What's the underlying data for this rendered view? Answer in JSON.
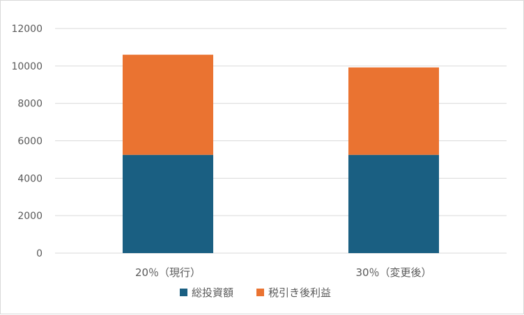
{
  "chart_data": {
    "type": "bar",
    "stacked": true,
    "categories": [
      "20％（現行）",
      "30％（変更後）"
    ],
    "series": [
      {
        "name": "総投資額",
        "values": [
          5250,
          5250
        ],
        "color": "#1a5f82"
      },
      {
        "name": "税引き後利益",
        "values": [
          5350,
          4670
        ],
        "color": "#ea7331"
      }
    ],
    "ylim": [
      0,
      12000
    ],
    "yticks": [
      0,
      2000,
      4000,
      6000,
      8000,
      10000,
      12000
    ],
    "grid": true,
    "legend": "bottom"
  }
}
